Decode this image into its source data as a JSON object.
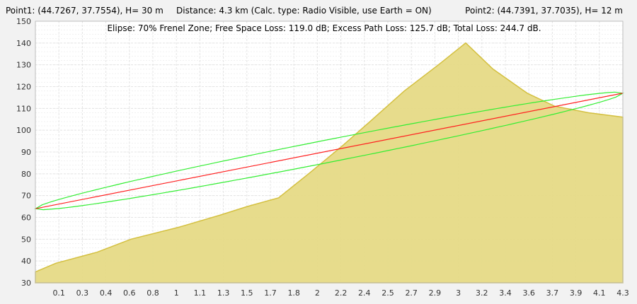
{
  "header": {
    "point1": "Point1: (44.7267, 37.7554), H= 30 m",
    "distance": "Distance: 4.3 km (Calc. type: Radio Visible, use Earth = ON)",
    "point2": "Point2: (44.7391, 37.7035), H= 12 m"
  },
  "info_line": "Elipse: 70% Frenel Zone;  Free Space Loss: 119.0 dB;  Excess Path Loss: 125.7 dB;   Total Loss: 244.7 dB.",
  "colors": {
    "terrain_fill": "#e6da86",
    "terrain_stroke": "#d4c040",
    "los_line": "#ff2020",
    "fresnel": "#33ee33",
    "plot_bg": "#ffffff",
    "grid": "#e4e4e4"
  },
  "chart_data": {
    "type": "area",
    "xlim": [
      0,
      4.3
    ],
    "ylim": [
      30,
      150
    ],
    "x_tick_labels": [
      "0.1",
      "0.3",
      "0.4",
      "0.6",
      "0.8",
      "1",
      "1.1",
      "1.3",
      "1.5",
      "1.7",
      "1.8",
      "2",
      "2.2",
      "2.4",
      "2.5",
      "2.7",
      "2.9",
      "3",
      "3.2",
      "3.4",
      "3.6",
      "3.7",
      "3.9",
      "4.1",
      "4.3"
    ],
    "y_tick_labels": [
      "30",
      "40",
      "50",
      "60",
      "70",
      "80",
      "90",
      "100",
      "110",
      "120",
      "130",
      "140",
      "150"
    ],
    "terrain": {
      "x": [
        0,
        0.15,
        0.45,
        0.7,
        1.05,
        1.35,
        1.55,
        1.78,
        2.0,
        2.25,
        2.45,
        2.7,
        2.95,
        3.15,
        3.35,
        3.6,
        3.8,
        4.05,
        4.3
      ],
      "y": [
        35,
        39,
        44,
        50,
        55.5,
        61,
        65,
        69,
        80,
        93,
        104,
        118,
        130,
        140,
        128,
        117,
        111,
        108,
        106
      ]
    },
    "line_of_sight": {
      "x": [
        0,
        4.3
      ],
      "y": [
        64,
        117
      ]
    },
    "fresnel_zone_percent": 70
  }
}
